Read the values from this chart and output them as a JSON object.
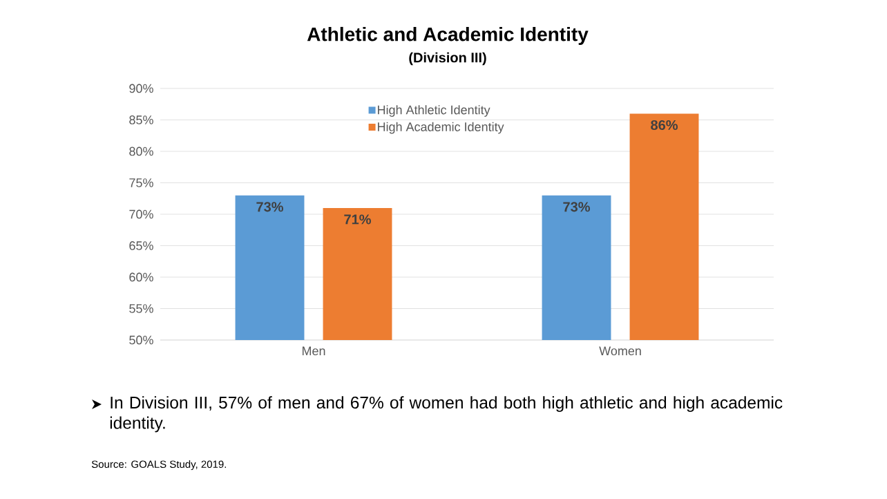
{
  "chart_data": {
    "type": "bar",
    "title": "Athletic and Academic Identity",
    "subtitle": "(Division III)",
    "categories": [
      "Men",
      "Women"
    ],
    "series": [
      {
        "name": "High Athletic Identity",
        "color": "#5b9bd5",
        "values": [
          73,
          73
        ],
        "value_labels": [
          "73%",
          "73%"
        ]
      },
      {
        "name": "High Academic Identity",
        "color": "#ed7d31",
        "values": [
          71,
          86
        ],
        "value_labels": [
          "71%",
          "86%"
        ]
      }
    ],
    "ylim": [
      50,
      90
    ],
    "yticks": [
      {
        "value": 50,
        "label": "50%"
      },
      {
        "value": 55,
        "label": "55%"
      },
      {
        "value": 60,
        "label": "60%"
      },
      {
        "value": 65,
        "label": "65%"
      },
      {
        "value": 70,
        "label": "70%"
      },
      {
        "value": 75,
        "label": "75%"
      },
      {
        "value": 80,
        "label": "80%"
      },
      {
        "value": 85,
        "label": "85%"
      },
      {
        "value": 90,
        "label": "90%"
      }
    ],
    "grid": "y",
    "legend": "top",
    "annotations": [
      "In Division III, 57% of men and 67% of women had both high athletic and high academic identity.",
      "Source: GOALS Study, 2019."
    ]
  }
}
